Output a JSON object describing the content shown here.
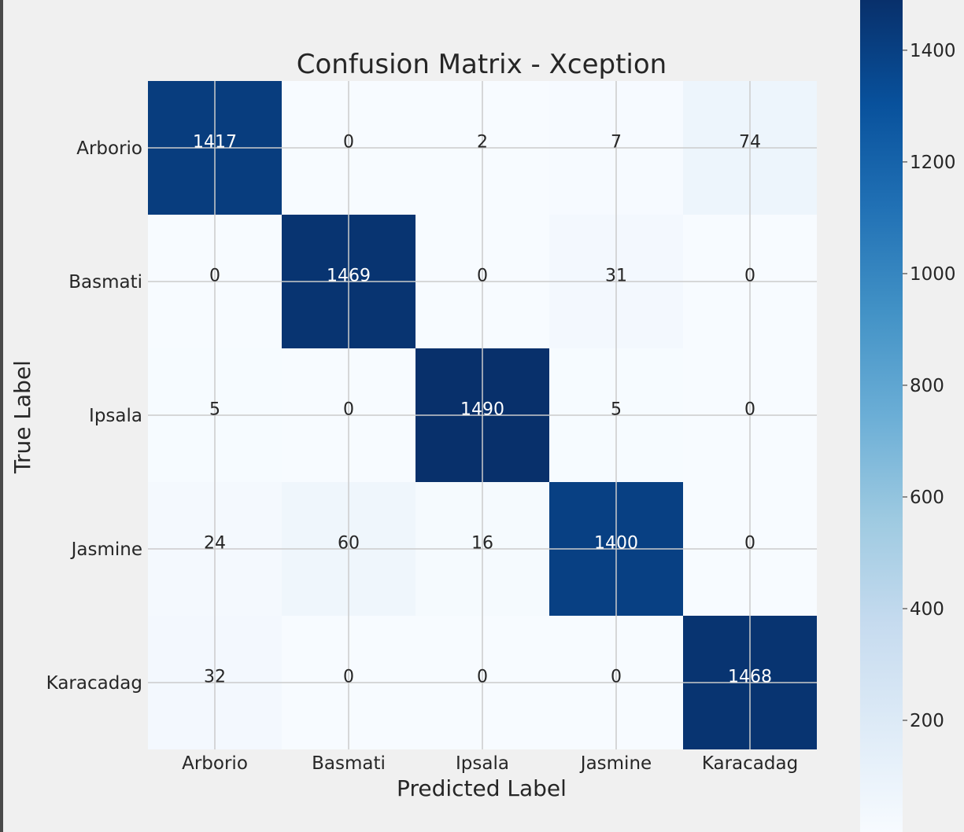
{
  "chart_data": {
    "type": "heatmap",
    "title": "Confusion Matrix - Xception",
    "xlabel": "Predicted Label",
    "ylabel": "True Label",
    "x_categories": [
      "Arborio",
      "Basmati",
      "Ipsala",
      "Jasmine",
      "Karacadag"
    ],
    "y_categories": [
      "Arborio",
      "Basmati",
      "Ipsala",
      "Jasmine",
      "Karacadag"
    ],
    "values": [
      [
        1417,
        0,
        2,
        7,
        74
      ],
      [
        0,
        1469,
        0,
        31,
        0
      ],
      [
        5,
        0,
        1490,
        5,
        0
      ],
      [
        24,
        60,
        16,
        1400,
        0
      ],
      [
        32,
        0,
        0,
        0,
        1468
      ]
    ],
    "colorbar": {
      "ticks": [
        200,
        400,
        600,
        800,
        1000,
        1200,
        1400
      ],
      "range": [
        0,
        1490
      ],
      "colormap": "Blues"
    },
    "grid": true
  }
}
